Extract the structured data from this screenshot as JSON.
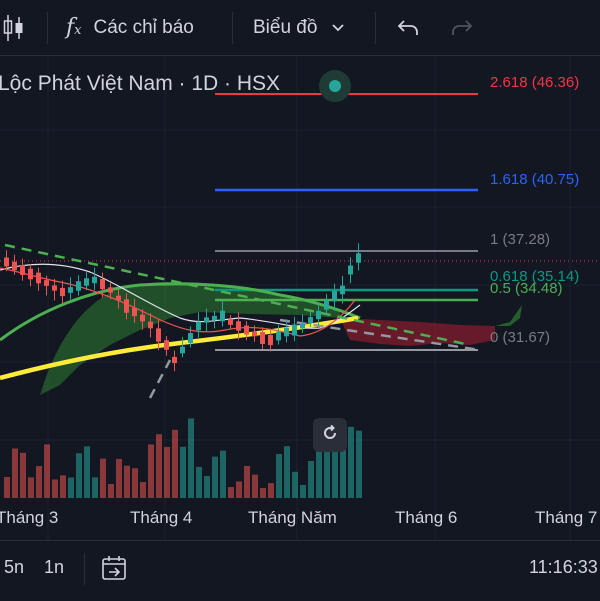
{
  "toolbar": {
    "indicators_label": "Các chỉ báo",
    "chart_type_label": "Biểu đồ"
  },
  "chart_header": {
    "title": "Lộc Phát Việt Nam · 1D · HSX"
  },
  "fib_levels": [
    {
      "label": "2.618 (46.36)",
      "color": "#f23645"
    },
    {
      "label": "1.618 (40.75)",
      "color": "#2962ff"
    },
    {
      "label": "1 (37.28)",
      "color": "#787b86"
    },
    {
      "label": "0.618 (35.14)",
      "color": "#089981"
    },
    {
      "label": "0.5 (34.48)",
      "color": "#4caf50"
    },
    {
      "label": "0 (31.67)",
      "color": "#787b86"
    }
  ],
  "x_axis": {
    "labels": [
      "Tháng 3",
      "Tháng 4",
      "Tháng Năm",
      "Tháng 6",
      "Tháng 7"
    ]
  },
  "bottom_bar": {
    "range_5n": "5n",
    "range_1n": "1n",
    "time": "11:16:33"
  },
  "colors": {
    "background": "#131722",
    "up": "#26a69a",
    "down": "#ef5350",
    "cloud_green": "#2e7d32",
    "cloud_red": "#8b1c2c",
    "ma_long": "#ffeb3b",
    "ma_green": "#4caf50"
  },
  "icons": [
    "candlestick-icon",
    "fx-icon",
    "chevron-down-icon",
    "undo-icon",
    "redo-icon",
    "reset-icon",
    "calendar-goto-icon"
  ]
}
